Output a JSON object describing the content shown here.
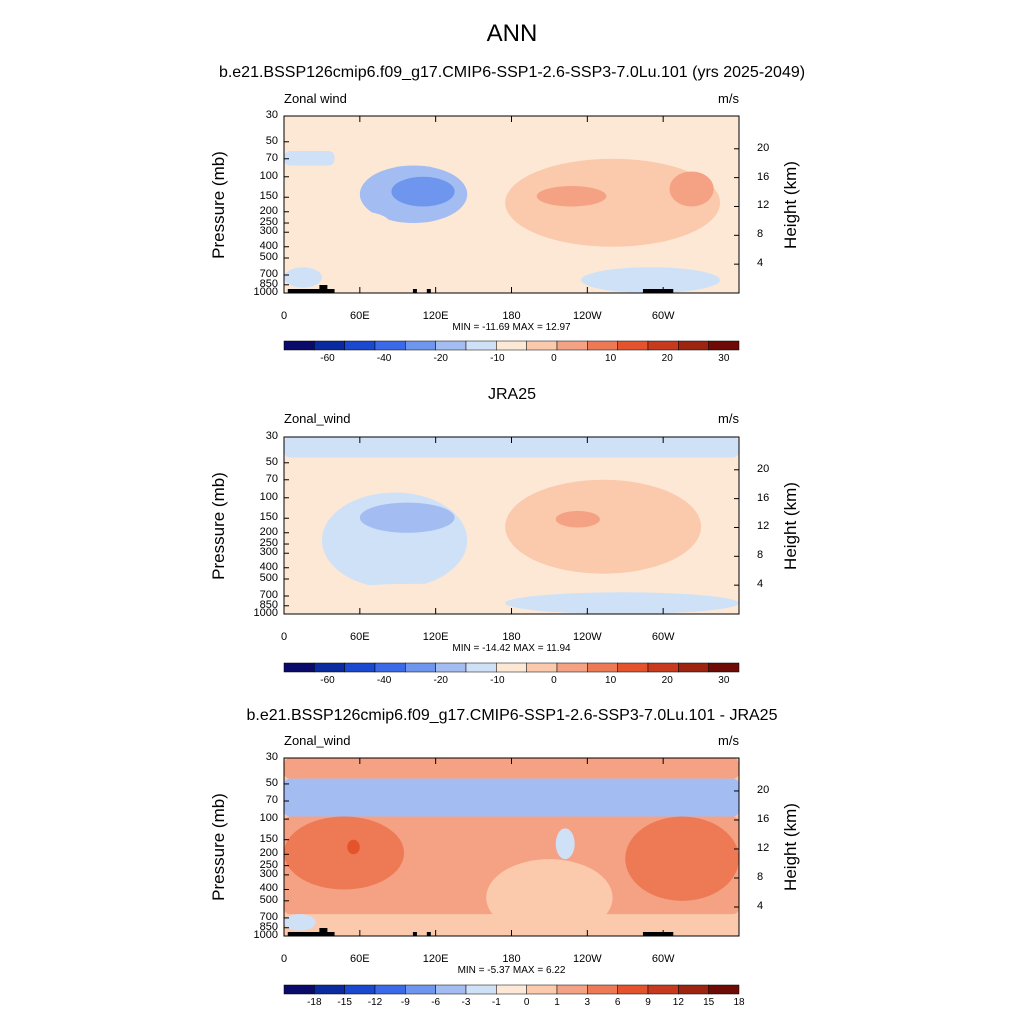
{
  "figure": {
    "main_title": "ANN"
  },
  "chart_data": [
    {
      "type": "heatmap",
      "title": "b.e21.BSSP126cmip6.f09_g17.CMIP6-SSP1-2.6-SSP3-7.0Lu.101 (yrs 2025-2049)",
      "variable_label": "Zonal wind",
      "units": "m/s",
      "ylabel": "Pressure (mb)",
      "ylabel_right": "Height (km)",
      "x_ticks": [
        "0",
        "60E",
        "120E",
        "180",
        "120W",
        "60W"
      ],
      "y_ticks": [
        "30",
        "50",
        "70",
        "100",
        "150",
        "200",
        "250",
        "300",
        "400",
        "500",
        "700",
        "850",
        "1000"
      ],
      "y_ticks_right": [
        "20",
        "16",
        "12",
        "8",
        "4"
      ],
      "min_max_text": "MIN = -11.69  MAX =  12.97",
      "min": -11.69,
      "max": 12.97,
      "colorbar_labels": [
        "-60",
        "-40",
        "-20",
        "-10",
        "0",
        "10",
        "20",
        "30"
      ],
      "features": [
        {
          "kind": "easterly-band",
          "lon": [
            0,
            40
          ],
          "pressure": [
            60,
            80
          ],
          "value": -3
        },
        {
          "kind": "easterly-jet",
          "lon": [
            60,
            145
          ],
          "pressure": [
            80,
            250
          ],
          "value": -8
        },
        {
          "kind": "easterly-core",
          "lon": [
            85,
            135
          ],
          "pressure": [
            100,
            180
          ],
          "value": -11
        },
        {
          "kind": "westerly-jet",
          "lon": [
            175,
            345
          ],
          "pressure": [
            70,
            400
          ],
          "value": 8
        },
        {
          "kind": "westerly-core",
          "lon": [
            200,
            255
          ],
          "pressure": [
            120,
            180
          ],
          "value": 12
        },
        {
          "kind": "westerly-core",
          "lon": [
            305,
            340
          ],
          "pressure": [
            90,
            180
          ],
          "value": 13
        },
        {
          "kind": "westerly-low",
          "lon": [
            40,
            175
          ],
          "pressure": [
            450,
            900
          ],
          "value": 3
        },
        {
          "kind": "westerly-low",
          "lon": [
            40,
            85
          ],
          "pressure": [
            200,
            350
          ],
          "value": 2
        },
        {
          "kind": "easterly-surface",
          "lon": [
            235,
            345
          ],
          "pressure": [
            600,
            1000
          ],
          "value": -3
        },
        {
          "kind": "easterly-surface",
          "lon": [
            0,
            30
          ],
          "pressure": [
            600,
            900
          ],
          "value": -2
        }
      ]
    },
    {
      "type": "heatmap",
      "title": "JRA25",
      "variable_label": "Zonal_wind",
      "units": "m/s",
      "ylabel": "Pressure (mb)",
      "ylabel_right": "Height (km)",
      "x_ticks": [
        "0",
        "60E",
        "120E",
        "180",
        "120W",
        "60W"
      ],
      "y_ticks": [
        "30",
        "50",
        "70",
        "100",
        "150",
        "200",
        "250",
        "300",
        "400",
        "500",
        "700",
        "850",
        "1000"
      ],
      "y_ticks_right": [
        "20",
        "16",
        "12",
        "8",
        "4"
      ],
      "min_max_text": "MIN = -14.42  MAX =  11.94",
      "min": -14.42,
      "max": 11.94,
      "colorbar_labels": [
        "-60",
        "-40",
        "-20",
        "-10",
        "0",
        "10",
        "20",
        "30"
      ],
      "features": [
        {
          "kind": "easterly-band",
          "lon": [
            0,
            360
          ],
          "pressure": [
            30,
            45
          ],
          "value": -3
        },
        {
          "kind": "westerly-upper",
          "lon": [
            100,
            340
          ],
          "pressure": [
            45,
            90
          ],
          "value": 3
        },
        {
          "kind": "easterly-jet",
          "lon": [
            30,
            145
          ],
          "pressure": [
            90,
            600
          ],
          "value": -4
        },
        {
          "kind": "easterly-core",
          "lon": [
            60,
            135
          ],
          "pressure": [
            110,
            200
          ],
          "value": -8
        },
        {
          "kind": "westerly-jet",
          "lon": [
            175,
            330
          ],
          "pressure": [
            70,
            450
          ],
          "value": 5
        },
        {
          "kind": "westerly-core",
          "lon": [
            190,
            285
          ],
          "pressure": [
            80,
            350
          ],
          "value": 8
        },
        {
          "kind": "westerly-core",
          "lon": [
            215,
            250
          ],
          "pressure": [
            130,
            180
          ],
          "value": 12
        },
        {
          "kind": "westerly-low",
          "lon": [
            30,
            175
          ],
          "pressure": [
            550,
            900
          ],
          "value": 2
        },
        {
          "kind": "easterly-surface",
          "lon": [
            175,
            360
          ],
          "pressure": [
            650,
            1000
          ],
          "value": -3
        }
      ]
    },
    {
      "type": "heatmap",
      "title": "b.e21.BSSP126cmip6.f09_g17.CMIP6-SSP1-2.6-SSP3-7.0Lu.101 - JRA25",
      "variable_label": "Zonal_wind",
      "units": "m/s",
      "ylabel": "Pressure (mb)",
      "ylabel_right": "Height (km)",
      "x_ticks": [
        "0",
        "60E",
        "120E",
        "180",
        "120W",
        "60W"
      ],
      "y_ticks": [
        "30",
        "50",
        "70",
        "100",
        "150",
        "200",
        "250",
        "300",
        "400",
        "500",
        "700",
        "850",
        "1000"
      ],
      "y_ticks_right": [
        "20",
        "16",
        "12",
        "8",
        "4"
      ],
      "min_max_text": "MIN =  -5.37  MAX =   6.22",
      "min": -5.37,
      "max": 6.22,
      "colorbar_labels": [
        "-18",
        "-15",
        "-12",
        "-9",
        "-6",
        "-3",
        "-1",
        "0",
        "1",
        "3",
        "6",
        "9",
        "12",
        "15",
        "18"
      ],
      "features": [
        {
          "kind": "positive-band",
          "lon": [
            0,
            360
          ],
          "pressure": [
            30,
            45
          ],
          "value": 2
        },
        {
          "kind": "negative-band",
          "lon": [
            0,
            360
          ],
          "pressure": [
            45,
            95
          ],
          "value": -4
        },
        {
          "kind": "positive-broad",
          "lon": [
            0,
            360
          ],
          "pressure": [
            95,
            650
          ],
          "value": 2
        },
        {
          "kind": "positive-region",
          "lon": [
            0,
            95
          ],
          "pressure": [
            95,
            400
          ],
          "value": 4
        },
        {
          "kind": "positive-region",
          "lon": [
            270,
            360
          ],
          "pressure": [
            95,
            500
          ],
          "value": 4
        },
        {
          "kind": "positive-core",
          "lon": [
            50,
            60
          ],
          "pressure": [
            150,
            200
          ],
          "value": 6
        },
        {
          "kind": "negative-spot",
          "lon": [
            215,
            230
          ],
          "pressure": [
            120,
            220
          ],
          "value": -3
        },
        {
          "kind": "near-zero",
          "lon": [
            160,
            260
          ],
          "pressure": [
            220,
            1000
          ],
          "value": 0
        },
        {
          "kind": "negative-surface",
          "lon": [
            0,
            25
          ],
          "pressure": [
            650,
            900
          ],
          "value": -2
        }
      ]
    }
  ]
}
